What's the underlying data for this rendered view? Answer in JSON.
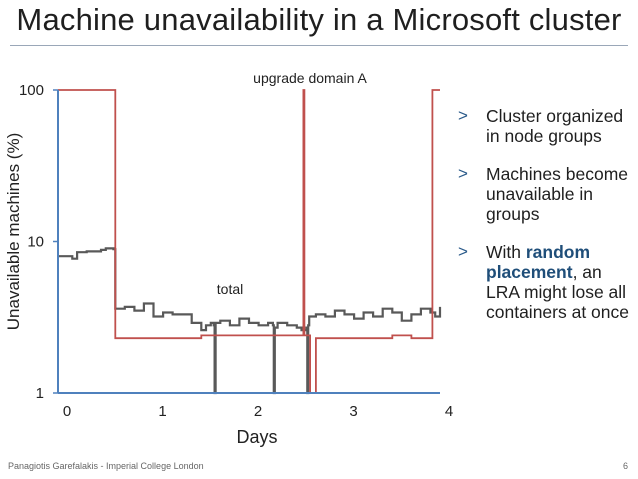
{
  "slide": {
    "title": "Machine unavailability in a Microsoft cluster",
    "footer": "Panagiotis Garefalakis - Imperial College London",
    "page_number": "6"
  },
  "bullets": [
    {
      "text": "Cluster organized in node groups"
    },
    {
      "text": "Machines become unavailable in groups"
    },
    {
      "pre": "With ",
      "highlight": "random placement",
      "post": ", an LRA might lose all containers at once"
    }
  ],
  "bullet_marker": ">",
  "colors": {
    "total": "#595959",
    "upgrade": "#c0504d",
    "axis": "#4f81bd",
    "accent": "#1f4e79"
  },
  "chart_data": {
    "type": "line",
    "xlabel": "Days",
    "ylabel": "Unavailable machines (%)",
    "xlim": [
      0,
      4
    ],
    "ylim": [
      1,
      100
    ],
    "yscale": "log",
    "x_ticks": [
      "0",
      "1",
      "2",
      "3",
      "4"
    ],
    "y_ticks": [
      "1",
      "10",
      "100"
    ],
    "annotations": [
      {
        "text": "upgrade domain A",
        "series": "upgrade"
      },
      {
        "text": "total",
        "series": "total"
      }
    ],
    "series": [
      {
        "name": "total",
        "x": [
          0,
          0.15,
          0.2,
          0.3,
          0.45,
          0.5,
          0.58,
          0.6,
          0.7,
          0.8,
          0.9,
          1.0,
          1.1,
          1.2,
          1.3,
          1.4,
          1.5,
          1.55,
          1.6,
          1.63,
          1.64,
          1.65,
          1.7,
          1.8,
          1.9,
          2.0,
          2.1,
          2.2,
          2.25,
          2.26,
          2.27,
          2.3,
          2.4,
          2.5,
          2.55,
          2.6,
          2.61,
          2.62,
          2.63,
          2.7,
          2.8,
          2.9,
          3.0,
          3.1,
          3.2,
          3.3,
          3.4,
          3.5,
          3.6,
          3.7,
          3.8,
          3.9,
          3.95,
          4.0
        ],
        "values": [
          8.0,
          7.7,
          8.5,
          8.6,
          8.8,
          9.0,
          8.9,
          3.6,
          3.7,
          3.5,
          3.9,
          3.2,
          3.4,
          3.3,
          3.3,
          2.9,
          2.6,
          2.8,
          2.9,
          2.8,
          1.0,
          2.9,
          3.0,
          2.8,
          3.1,
          2.9,
          2.8,
          2.9,
          2.8,
          1.0,
          2.7,
          2.9,
          2.8,
          2.7,
          2.6,
          2.7,
          1.0,
          2.8,
          3.2,
          3.3,
          3.2,
          3.5,
          3.3,
          3.1,
          3.4,
          3.2,
          3.6,
          3.4,
          3.0,
          3.3,
          3.6,
          3.4,
          3.2,
          3.7
        ]
      },
      {
        "name": "upgrade",
        "x": [
          0,
          0.58,
          0.6,
          1.0,
          1.5,
          2.0,
          2.4,
          2.56,
          2.57,
          2.58,
          2.63,
          2.64,
          2.7,
          3.0,
          3.5,
          3.7,
          3.85,
          3.9,
          3.92,
          4.0
        ],
        "values": [
          100,
          100,
          2.3,
          2.3,
          2.4,
          2.4,
          2.4,
          2.4,
          100,
          2.4,
          2.4,
          1.0,
          2.3,
          2.3,
          2.4,
          2.3,
          2.3,
          2.3,
          100,
          100
        ]
      }
    ]
  }
}
